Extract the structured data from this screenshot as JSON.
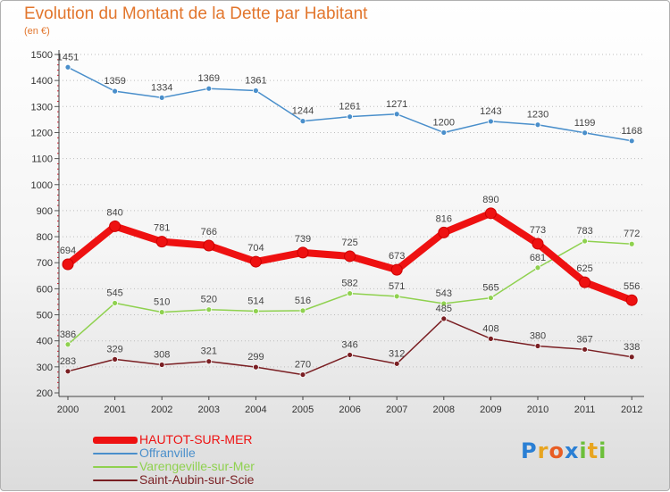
{
  "chart_data": {
    "type": "line",
    "title": "Evolution du Montant de la Dette par Habitant",
    "unit_label": "(en €)",
    "xlabel": "",
    "ylabel": "",
    "ylim": [
      200,
      1500
    ],
    "y_ticks": [
      200,
      300,
      400,
      500,
      600,
      700,
      800,
      900,
      1000,
      1100,
      1200,
      1300,
      1400,
      1500
    ],
    "x": [
      "2000",
      "2001",
      "2002",
      "2003",
      "2004",
      "2005",
      "2006",
      "2007",
      "2008",
      "2009",
      "2010",
      "2011",
      "2012"
    ],
    "grid": "horizontal-dotted",
    "legend_position": "bottom-left",
    "series": [
      {
        "name": "HAUTOT-SUR-MER",
        "color": "#ee1111",
        "values": [
          694,
          840,
          781,
          766,
          704,
          739,
          725,
          673,
          816,
          890,
          773,
          625,
          556
        ]
      },
      {
        "name": "Offranville",
        "color": "#4a8fcb",
        "values": [
          1451,
          1359,
          1334,
          1369,
          1361,
          1244,
          1261,
          1271,
          1200,
          1243,
          1230,
          1199,
          1168
        ]
      },
      {
        "name": "Varengeville-sur-Mer",
        "color": "#8fd14f",
        "values": [
          386,
          545,
          510,
          520,
          514,
          516,
          582,
          571,
          543,
          565,
          681,
          783,
          772
        ]
      },
      {
        "name": "Saint-Aubin-sur-Scie",
        "color": "#7a1f23",
        "values": [
          283,
          329,
          308,
          321,
          299,
          270,
          346,
          312,
          485,
          408,
          380,
          367,
          338
        ]
      }
    ]
  },
  "brand": {
    "letters": [
      "P",
      "r",
      "o",
      "x",
      "i",
      "t",
      "i"
    ],
    "colors": [
      "#2a7fd4",
      "#e8a521",
      "#e85d24",
      "#2a7fd4",
      "#6cbf3a",
      "#e8a521",
      "#6cbf3a"
    ]
  }
}
